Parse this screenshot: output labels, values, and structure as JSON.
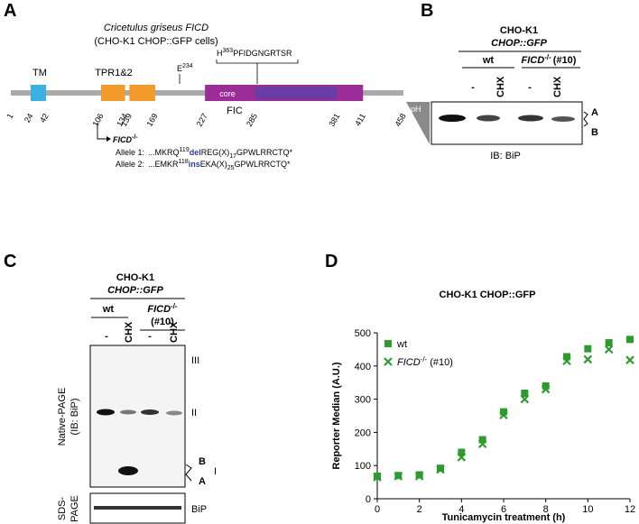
{
  "panel_a": {
    "letter": "A",
    "title": "Cricetulus griseus FICD",
    "subtitle": "(CHO-K1 CHOP::GFP cells)",
    "domains": {
      "tm": "TM",
      "tpr": "TPR1&2",
      "fic": "FIC",
      "core": "core"
    },
    "positions": [
      1,
      24,
      42,
      106,
      134,
      139,
      169,
      227,
      285,
      381,
      411,
      458
    ],
    "e_site": {
      "residue": "E",
      "number": "234"
    },
    "h_motif": {
      "residue": "H",
      "number": "363",
      "motif": "PFIDGNGRTSR"
    },
    "knockout": {
      "gene": "FICD",
      "sup": "-/-"
    },
    "alleles": [
      {
        "label": "Allele 1:",
        "prefix": "...MKRQ",
        "site": "119",
        "mutation": "del",
        "mid": "REG(X)",
        "count": "17",
        "suffix": "GPWLRRCTQ*"
      },
      {
        "label": "Allele 2:",
        "prefix": "...EMKR",
        "site": "118",
        "mutation": "ins",
        "mid": "EKA(X)",
        "count": "25",
        "suffix": "GPWLRRCTQ*"
      }
    ]
  },
  "panel_b": {
    "letter": "B",
    "cell_line": "CHO-K1",
    "reporter": "CHOP::GFP",
    "wt": "wt",
    "mutant": {
      "gene": "FICD",
      "sup": "-/-",
      "clone": "(#10)"
    },
    "lanes": [
      "-",
      "CHX",
      "-",
      "CHX"
    ],
    "gradient": "pH",
    "bands": [
      "A",
      "B"
    ],
    "blot": "IB: BiP"
  },
  "panel_c": {
    "letter": "C",
    "cell_line": "CHO-K1",
    "reporter": "CHOP::GFP",
    "wt": "wt",
    "mutant": {
      "gene": "FICD",
      "sup": "-/-",
      "clone": "(#10)"
    },
    "lanes": [
      "-",
      "CHX",
      "-",
      "CHX"
    ],
    "species": [
      "III",
      "II",
      "B",
      "A",
      "I"
    ],
    "native_label": [
      "Native-PAGE",
      "(IB: BiP)"
    ],
    "sds_label": [
      "SDS-",
      "PAGE"
    ],
    "sds_blot": "BiP"
  },
  "chart_data": {
    "type": "scatter",
    "letter": "D",
    "title": "CHO-K1 CHOP::GFP",
    "x_label": "Tunicamycin treatment (h)",
    "y_label": "Reporter Median (A.U.)",
    "x": [
      0,
      1,
      2,
      3,
      4,
      5,
      6,
      7,
      8,
      9,
      10,
      11,
      12
    ],
    "series": [
      {
        "name": "wt",
        "marker": "square",
        "color": "#2e9b2e",
        "values": [
          68,
          70,
          72,
          92,
          140,
          178,
          262,
          318,
          340,
          428,
          452,
          470,
          480
        ]
      },
      {
        "name": "FICD",
        "name_sup": "-/-",
        "name_suffix": "(#10)",
        "marker": "x",
        "color": "#2e9b2e",
        "values": [
          65,
          68,
          68,
          88,
          125,
          165,
          252,
          300,
          330,
          415,
          420,
          450,
          418
        ]
      }
    ],
    "xlim": [
      0,
      12
    ],
    "xticks": [
      0,
      2,
      4,
      6,
      8,
      10,
      12
    ],
    "ylim": [
      0,
      500
    ],
    "yticks": [
      0,
      100,
      200,
      300,
      400,
      500
    ]
  }
}
